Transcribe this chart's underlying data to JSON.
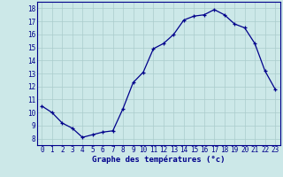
{
  "hours": [
    0,
    1,
    2,
    3,
    4,
    5,
    6,
    7,
    8,
    9,
    10,
    11,
    12,
    13,
    14,
    15,
    16,
    17,
    18,
    19,
    20,
    21,
    22,
    23
  ],
  "temps": [
    10.5,
    10.0,
    9.2,
    8.8,
    8.1,
    8.3,
    8.5,
    8.6,
    10.3,
    12.3,
    13.1,
    14.9,
    15.3,
    16.0,
    17.1,
    17.4,
    17.5,
    17.9,
    17.5,
    16.8,
    16.5,
    15.3,
    13.2,
    11.8
  ],
  "line_color": "#00008b",
  "marker": "+",
  "marker_color": "#00008b",
  "bg_color": "#cce8e8",
  "grid_color": "#aacccc",
  "xlabel": "Graphe des températures (°c)",
  "xlabel_color": "#00008b",
  "ylim": [
    7.5,
    18.5
  ],
  "xlim": [
    -0.5,
    23.5
  ],
  "yticks": [
    8,
    9,
    10,
    11,
    12,
    13,
    14,
    15,
    16,
    17,
    18
  ],
  "xticks": [
    0,
    1,
    2,
    3,
    4,
    5,
    6,
    7,
    8,
    9,
    10,
    11,
    12,
    13,
    14,
    15,
    16,
    17,
    18,
    19,
    20,
    21,
    22,
    23
  ],
  "tick_label_color": "#00008b",
  "tick_label_size": 5.5,
  "xlabel_size": 6.5,
  "spine_color": "#00008b",
  "linewidth": 0.9,
  "markersize": 3.5,
  "marker_linewidth": 0.9
}
